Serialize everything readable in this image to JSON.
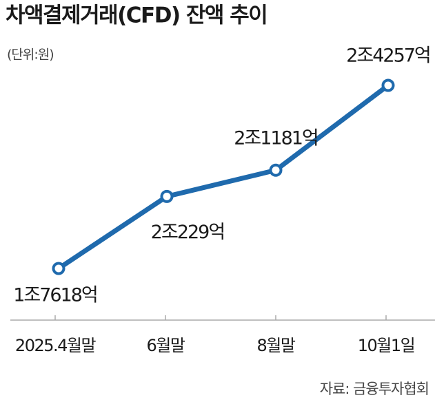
{
  "chart_data": {
    "type": "line",
    "title": "차액결제거래(CFD) 잔액 추이",
    "subtitle": "(단위:원)",
    "source": "자료: 금융투자협회",
    "categories": [
      "2025.4월말",
      "6월말",
      "8월말",
      "10월1일"
    ],
    "series": [
      {
        "color": "#1f6aad",
        "values": [
          17618,
          20229,
          21181,
          24257
        ],
        "value_labels": [
          "1조7618억",
          "2조229억",
          "2조1181억",
          "2조4257억"
        ]
      }
    ]
  }
}
